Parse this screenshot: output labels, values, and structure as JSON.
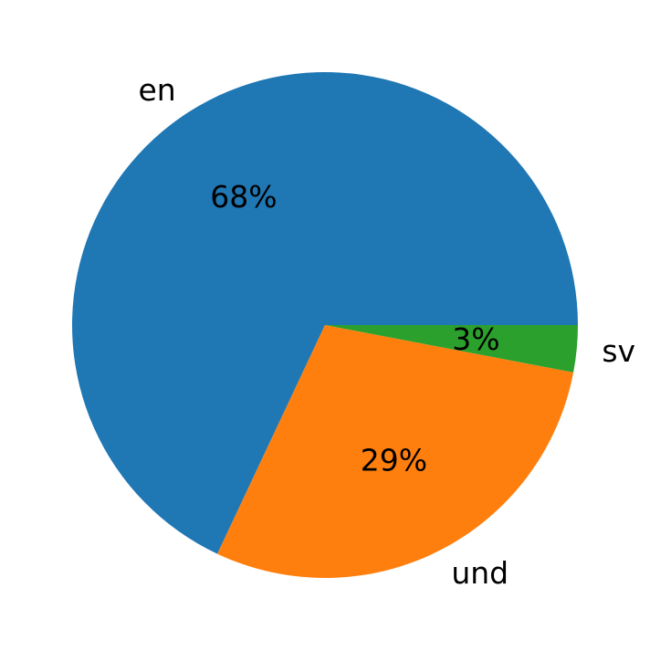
{
  "chart_data": {
    "type": "pie",
    "title": "",
    "start_angle_deg": 0,
    "direction": "counterclockwise",
    "categories": [
      "en",
      "und",
      "sv"
    ],
    "values": [
      68,
      29,
      3
    ],
    "value_labels": [
      "68%",
      "29%",
      "3%"
    ],
    "colors": [
      "#1f77b4",
      "#ff7f0e",
      "#2ca02c"
    ],
    "legend": false
  }
}
